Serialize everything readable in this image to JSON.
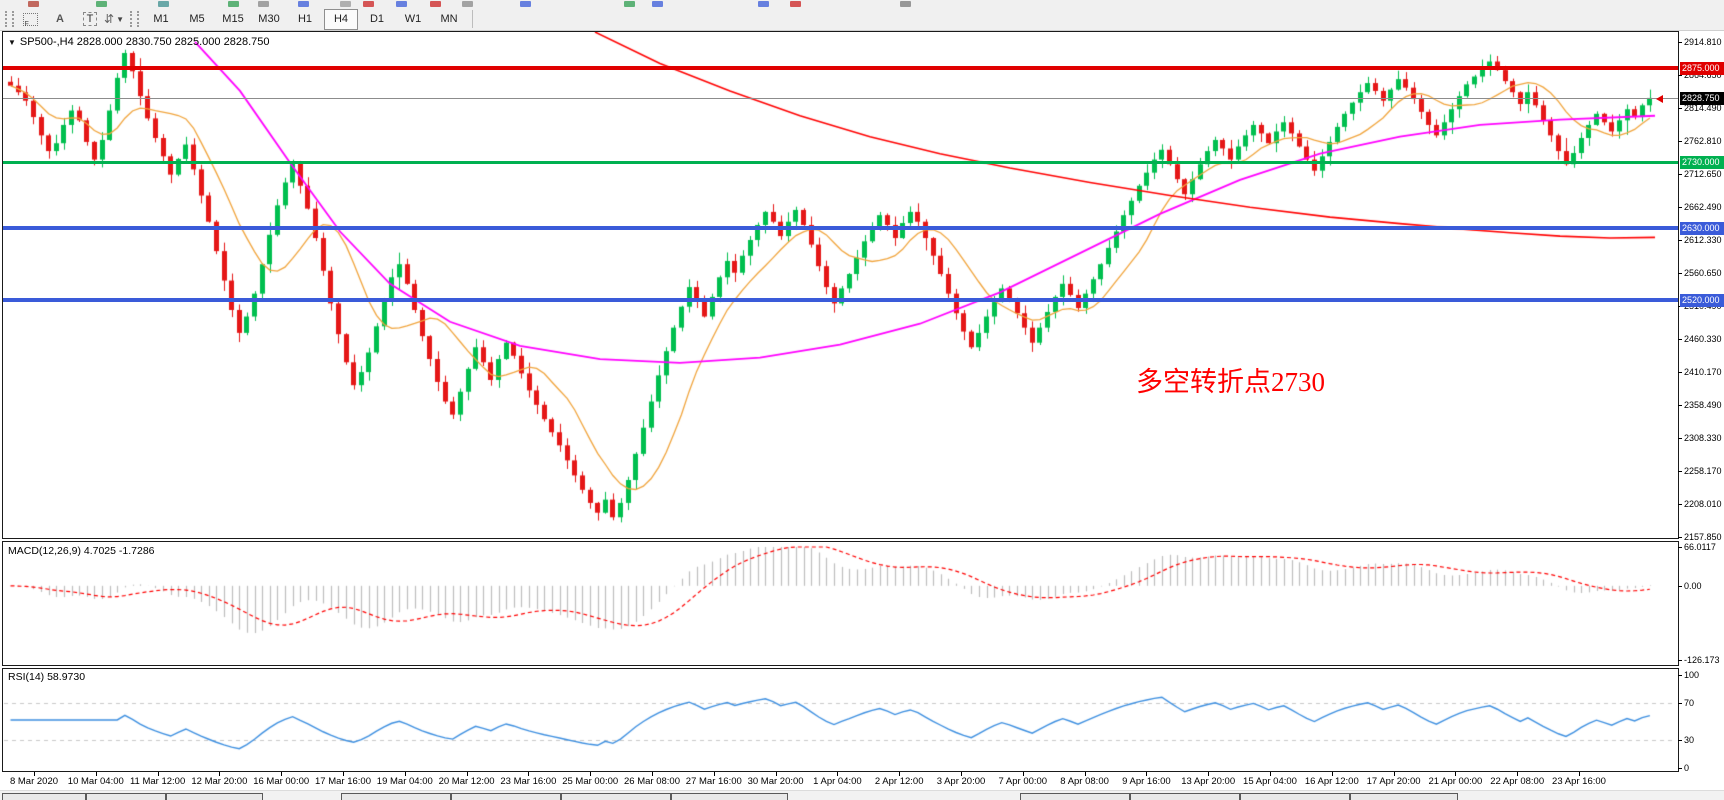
{
  "toolbar": {
    "font_button": "A",
    "text_button": "T",
    "timeframes": [
      "M1",
      "M5",
      "M15",
      "M30",
      "H1",
      "H4",
      "D1",
      "W1",
      "MN"
    ],
    "active_timeframe": "H4"
  },
  "chart": {
    "title": "SP500-,H4 2828.000 2830.750 2825.000 2828.750",
    "annotation": {
      "text": "多空转折点2730",
      "color": "#ff0000"
    },
    "price_axis_ticks": [
      "2914.810",
      "2864.650",
      "2814.490",
      "2762.810",
      "2712.650",
      "2662.490",
      "2612.330",
      "2560.650",
      "2510.490",
      "2460.330",
      "2410.170",
      "2358.490",
      "2308.330",
      "2258.170",
      "2208.010",
      "2157.850"
    ],
    "levels": [
      {
        "price": 2875.0,
        "label": "2875.000",
        "color": "#e00000",
        "thickness": 4
      },
      {
        "price": 2730.0,
        "label": "2730.000",
        "color": "#00b050",
        "thickness": 3
      },
      {
        "price": 2630.0,
        "label": "2630.000",
        "color": "#3a5bd9",
        "thickness": 4
      },
      {
        "price": 2520.0,
        "label": "2520.000",
        "color": "#3a5bd9",
        "thickness": 4
      }
    ],
    "current_price": {
      "value": 2828.75,
      "label": "2828.750",
      "line_color": "#8c8c8c",
      "badge_bg": "#000000"
    },
    "colors": {
      "up": "#00bf4f",
      "down": "#e51717",
      "ma_fast": "#f0a43c",
      "ma_mid": "#ff00ff",
      "ma_slow": "#ff0000",
      "macd_hist": "#bdbdbd",
      "macd_signal": "#ff0000",
      "rsi": "#3d8fe0",
      "rsi_guide": "#c8c8c8"
    }
  },
  "macd": {
    "label": "MACD(12,26,9) 4.7025 -1.7286",
    "axis": [
      "66.0117",
      "0.00",
      "-126.173"
    ],
    "fast": 12,
    "slow": 26,
    "signal": 9,
    "range": [
      -126.173,
      66.0117
    ]
  },
  "rsi": {
    "label": "RSI(14) 58.9730",
    "axis": [
      "100",
      "70",
      "30",
      "0"
    ],
    "period": 14,
    "guides": [
      70,
      30
    ]
  },
  "time_axis": {
    "labels": [
      "8 Mar 2020",
      "10 Mar 04:00",
      "11 Mar 12:00",
      "12 Mar 20:00",
      "16 Mar 00:00",
      "17 Mar 16:00",
      "19 Mar 04:00",
      "20 Mar 12:00",
      "23 Mar 16:00",
      "25 Mar 00:00",
      "26 Mar 08:00",
      "27 Mar 16:00",
      "30 Mar 20:00",
      "1 Apr 04:00",
      "2 Apr 12:00",
      "3 Apr 20:00",
      "7 Apr 00:00",
      "8 Apr 08:00",
      "9 Apr 16:00",
      "13 Apr 20:00",
      "15 Apr 04:00",
      "16 Apr 12:00",
      "17 Apr 20:00",
      "21 Apr 00:00",
      "22 Apr 08:00",
      "23 Apr 16:00"
    ]
  },
  "chart_data": {
    "type": "candlestick",
    "symbol": "SP500-",
    "timeframe": "H4",
    "ohlc_display": {
      "open": 2828.0,
      "high": 2830.75,
      "low": 2825.0,
      "close": 2828.75
    },
    "price_range": [
      2157.85,
      2914.81
    ],
    "key_levels": [
      2875,
      2730,
      2630,
      2520
    ],
    "closes": [
      2848,
      2838,
      2825,
      2800,
      2772,
      2748,
      2760,
      2788,
      2810,
      2795,
      2762,
      2735,
      2765,
      2810,
      2860,
      2898,
      2870,
      2832,
      2798,
      2768,
      2740,
      2712,
      2736,
      2758,
      2720,
      2680,
      2640,
      2595,
      2550,
      2505,
      2470,
      2495,
      2530,
      2575,
      2620,
      2665,
      2700,
      2730,
      2695,
      2660,
      2615,
      2565,
      2515,
      2468,
      2425,
      2390,
      2410,
      2440,
      2480,
      2520,
      2555,
      2575,
      2545,
      2505,
      2465,
      2430,
      2395,
      2365,
      2345,
      2380,
      2415,
      2448,
      2425,
      2398,
      2430,
      2455,
      2435,
      2408,
      2382,
      2360,
      2338,
      2318,
      2298,
      2275,
      2252,
      2230,
      2210,
      2195,
      2215,
      2188,
      2210,
      2245,
      2285,
      2325,
      2365,
      2405,
      2442,
      2478,
      2510,
      2540,
      2520,
      2495,
      2525,
      2555,
      2580,
      2562,
      2588,
      2612,
      2635,
      2655,
      2640,
      2618,
      2640,
      2658,
      2635,
      2605,
      2572,
      2540,
      2515,
      2538,
      2560,
      2585,
      2610,
      2632,
      2650,
      2635,
      2615,
      2638,
      2655,
      2640,
      2615,
      2588,
      2560,
      2530,
      2500,
      2472,
      2448,
      2470,
      2495,
      2518,
      2538,
      2522,
      2500,
      2478,
      2455,
      2478,
      2502,
      2525,
      2545,
      2528,
      2508,
      2530,
      2552,
      2575,
      2600,
      2625,
      2650,
      2672,
      2695,
      2715,
      2735,
      2750,
      2728,
      2705,
      2682,
      2705,
      2728,
      2748,
      2765,
      2752,
      2735,
      2755,
      2772,
      2788,
      2775,
      2760,
      2778,
      2792,
      2775,
      2755,
      2735,
      2718,
      2740,
      2762,
      2785,
      2805,
      2822,
      2838,
      2852,
      2840,
      2825,
      2842,
      2858,
      2845,
      2828,
      2808,
      2788,
      2772,
      2792,
      2812,
      2832,
      2850,
      2862,
      2875,
      2885,
      2872,
      2855,
      2838,
      2820,
      2838,
      2818,
      2795,
      2772,
      2748,
      2728,
      2745,
      2768,
      2788,
      2805,
      2792,
      2778,
      2795,
      2812,
      2800,
      2818,
      2829
    ],
    "ma_fast_period": 10,
    "ma_mid_points": [
      [
        195,
        2915
      ],
      [
        240,
        2840
      ],
      [
        290,
        2730
      ],
      [
        340,
        2625
      ],
      [
        390,
        2545
      ],
      [
        450,
        2487
      ],
      [
        520,
        2450
      ],
      [
        600,
        2430
      ],
      [
        680,
        2424
      ],
      [
        760,
        2432
      ],
      [
        840,
        2452
      ],
      [
        920,
        2484
      ],
      [
        1000,
        2532
      ],
      [
        1080,
        2592
      ],
      [
        1160,
        2652
      ],
      [
        1240,
        2704
      ],
      [
        1320,
        2744
      ],
      [
        1400,
        2770
      ],
      [
        1480,
        2788
      ],
      [
        1560,
        2796
      ],
      [
        1655,
        2802
      ]
    ],
    "ma_slow_points": [
      [
        595,
        2930
      ],
      [
        660,
        2882
      ],
      [
        730,
        2840
      ],
      [
        800,
        2802
      ],
      [
        870,
        2770
      ],
      [
        940,
        2744
      ],
      [
        1010,
        2722
      ],
      [
        1090,
        2700
      ],
      [
        1170,
        2680
      ],
      [
        1250,
        2662
      ],
      [
        1330,
        2647
      ],
      [
        1400,
        2637
      ],
      [
        1460,
        2629
      ],
      [
        1510,
        2623
      ],
      [
        1560,
        2618
      ],
      [
        1610,
        2615
      ],
      [
        1655,
        2616
      ]
    ]
  }
}
